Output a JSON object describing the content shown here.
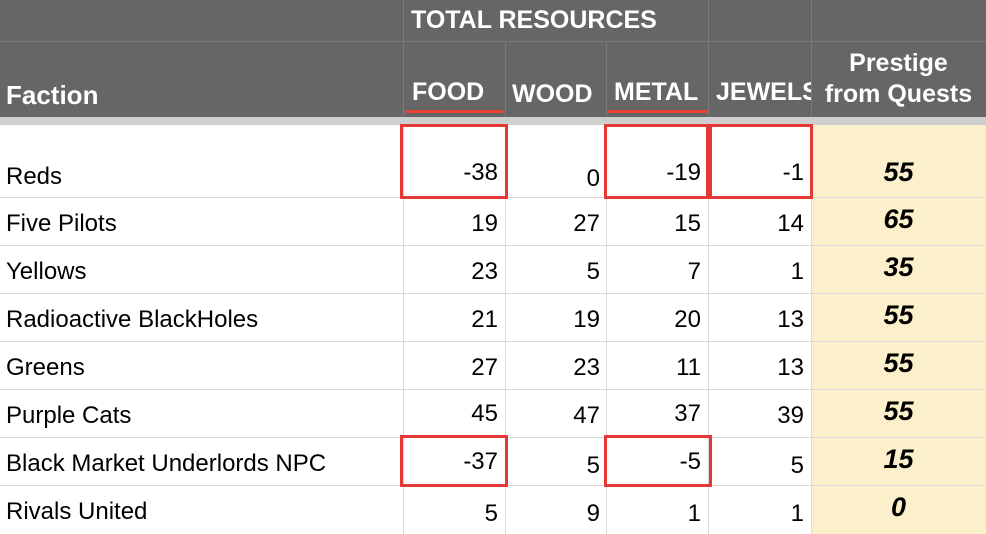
{
  "header": {
    "group_label": "TOTAL RESOURCES",
    "faction_label": "Faction",
    "food_label": "FOOD",
    "wood_label": "WOOD",
    "metal_label": "METAL",
    "jewels_label": "JEWELS",
    "prestige_line1": "Prestige",
    "prestige_line2": "from Quests"
  },
  "rows": [
    {
      "faction": "Reds",
      "food": "-38",
      "wood": "0",
      "metal": "-19",
      "jewels": "-1",
      "prestige": "55"
    },
    {
      "faction": "Five Pilots",
      "food": "19",
      "wood": "27",
      "metal": "15",
      "jewels": "14",
      "prestige": "65"
    },
    {
      "faction": "Yellows",
      "food": "23",
      "wood": "5",
      "metal": "7",
      "jewels": "1",
      "prestige": "35"
    },
    {
      "faction": "Radioactive BlackHoles",
      "food": "21",
      "wood": "19",
      "metal": "20",
      "jewels": "13",
      "prestige": "55"
    },
    {
      "faction": "Greens",
      "food": "27",
      "wood": "23",
      "metal": "11",
      "jewels": "13",
      "prestige": "55"
    },
    {
      "faction": "Purple Cats",
      "food": "45",
      "wood": "47",
      "metal": "37",
      "jewels": "39",
      "prestige": "55"
    },
    {
      "faction": "Black Market Underlords NPC",
      "food": "-37",
      "wood": "5",
      "metal": "-5",
      "jewels": "5",
      "prestige": "15"
    },
    {
      "faction": "Rivals United",
      "food": "5",
      "wood": "9",
      "metal": "1",
      "jewels": "1",
      "prestige": "0"
    }
  ],
  "colors": {
    "header_bg": "#666666",
    "highlight": "#e53935",
    "prestige_bg": "#fcf0cc",
    "underline": "#ea4335"
  }
}
